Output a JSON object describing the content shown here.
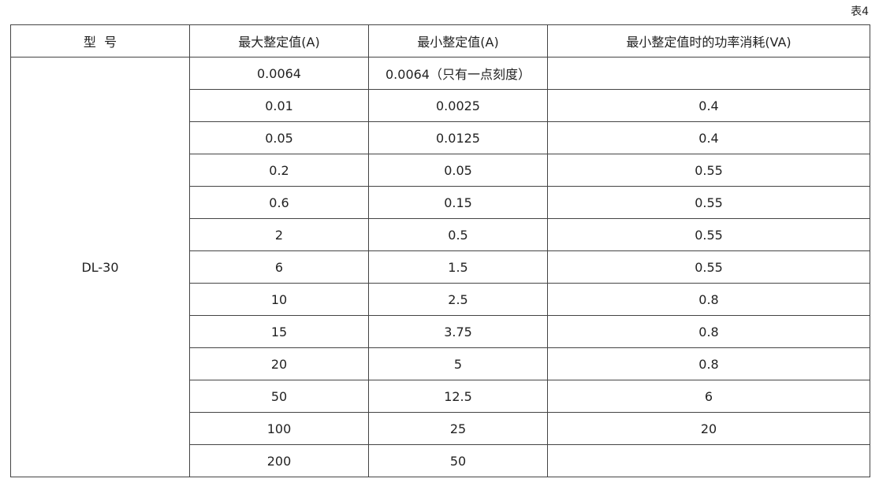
{
  "caption": "表4",
  "headers": [
    "型  号",
    "最大整定值(A)",
    "最小整定值(A)",
    "最小整定值时的功率消耗(VA)"
  ],
  "model": "DL-30",
  "rows": [
    [
      "0.0064",
      "0.0064（只有一点刻度）",
      ""
    ],
    [
      "0.01",
      "0.0025",
      "0.4"
    ],
    [
      "0.05",
      "0.0125",
      "0.4"
    ],
    [
      "0.2",
      "0.05",
      "0.55"
    ],
    [
      "0.6",
      "0.15",
      "0.55"
    ],
    [
      "2",
      "0.5",
      "0.55"
    ],
    [
      "6",
      "1.5",
      "0.55"
    ],
    [
      "10",
      "2.5",
      "0.8"
    ],
    [
      "15",
      "3.75",
      "0.8"
    ],
    [
      "20",
      "5",
      "0.8"
    ],
    [
      "50",
      "12.5",
      "6"
    ],
    [
      "100",
      "25",
      "20"
    ],
    [
      "200",
      "50",
      ""
    ]
  ]
}
